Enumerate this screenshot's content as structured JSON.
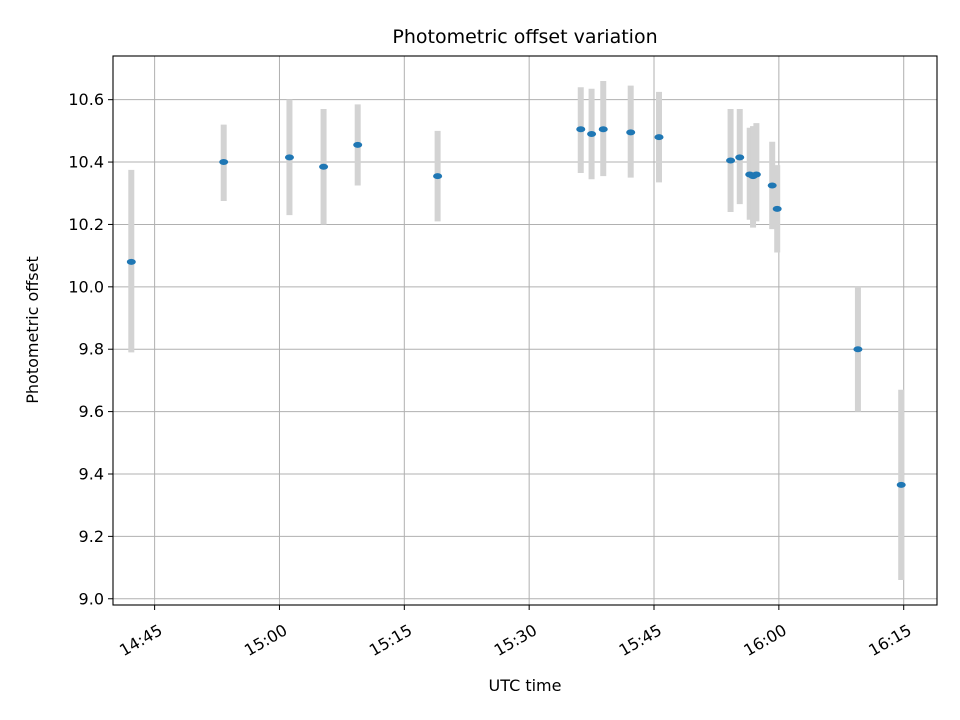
{
  "chart_data": {
    "type": "scatter",
    "title": "Photometric offset variation",
    "xlabel": "UTC time",
    "ylabel": "Photometric offset",
    "grid": true,
    "xlim": [
      "14:40",
      "16:19"
    ],
    "ylim": [
      8.98,
      10.74
    ],
    "x_ticks": [
      "14:45",
      "15:00",
      "15:15",
      "15:30",
      "15:45",
      "16:00",
      "16:15"
    ],
    "y_ticks": [
      "9.0",
      "9.2",
      "9.4",
      "9.6",
      "9.8",
      "10.0",
      "10.2",
      "10.4",
      "10.6"
    ],
    "colors": {
      "point": "#1f77b4",
      "errorbar": "#d3d3d3",
      "grid": "#b0b0b0"
    },
    "points": [
      {
        "t": "14:42.2",
        "y": 10.08,
        "err_low": 9.79,
        "err_high": 10.375
      },
      {
        "t": "14:53.3",
        "y": 10.4,
        "err_low": 10.275,
        "err_high": 10.52
      },
      {
        "t": "15:01.2",
        "y": 10.415,
        "err_low": 10.23,
        "err_high": 10.6
      },
      {
        "t": "15:05.3",
        "y": 10.385,
        "err_low": 10.2,
        "err_high": 10.57
      },
      {
        "t": "15:09.4",
        "y": 10.455,
        "err_low": 10.325,
        "err_high": 10.585
      },
      {
        "t": "15:19.0",
        "y": 10.355,
        "err_low": 10.21,
        "err_high": 10.5
      },
      {
        "t": "15:36.2",
        "y": 10.505,
        "err_low": 10.365,
        "err_high": 10.64
      },
      {
        "t": "15:37.5",
        "y": 10.49,
        "err_low": 10.345,
        "err_high": 10.635
      },
      {
        "t": "15:38.9",
        "y": 10.505,
        "err_low": 10.355,
        "err_high": 10.66
      },
      {
        "t": "15:42.2",
        "y": 10.495,
        "err_low": 10.35,
        "err_high": 10.645
      },
      {
        "t": "15:45.6",
        "y": 10.48,
        "err_low": 10.335,
        "err_high": 10.625
      },
      {
        "t": "15:54.2",
        "y": 10.405,
        "err_low": 10.24,
        "err_high": 10.57
      },
      {
        "t": "15:55.3",
        "y": 10.415,
        "err_low": 10.265,
        "err_high": 10.57
      },
      {
        "t": "15:56.5",
        "y": 10.36,
        "err_low": 10.215,
        "err_high": 10.51
      },
      {
        "t": "15:56.9",
        "y": 10.355,
        "err_low": 10.19,
        "err_high": 10.515
      },
      {
        "t": "15:57.3",
        "y": 10.36,
        "err_low": 10.21,
        "err_high": 10.525
      },
      {
        "t": "15:59.2",
        "y": 10.325,
        "err_low": 10.185,
        "err_high": 10.465
      },
      {
        "t": "15:59.8",
        "y": 10.25,
        "err_low": 10.11,
        "err_high": 10.39
      },
      {
        "t": "16:09.5",
        "y": 9.8,
        "err_low": 9.6,
        "err_high": 10.0
      },
      {
        "t": "16:14.7",
        "y": 9.365,
        "err_low": 9.06,
        "err_high": 9.67
      }
    ]
  }
}
